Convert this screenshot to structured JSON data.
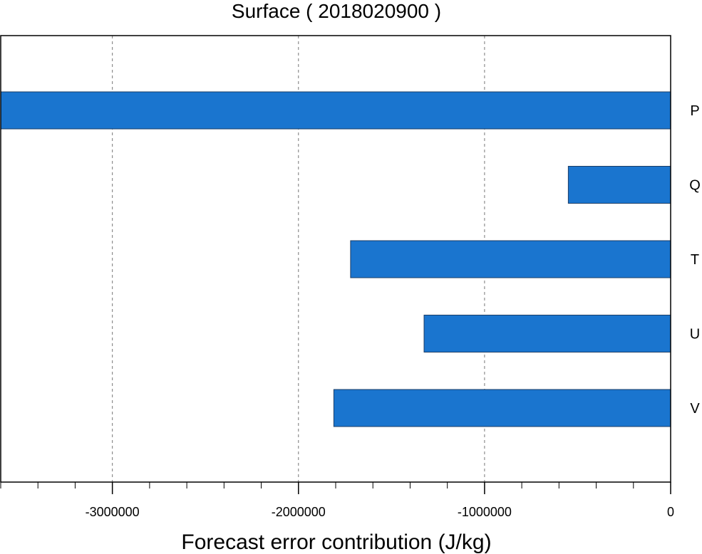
{
  "chart_data": {
    "type": "bar",
    "orientation": "horizontal",
    "title": "Surface ( 2018020900 )",
    "xlabel": "Forecast error contribution (J/kg)",
    "ylabel": "",
    "categories": [
      "P",
      "Q",
      "T",
      "U",
      "V"
    ],
    "values": [
      -3600000,
      -550000,
      -1720000,
      -1325000,
      -1810000
    ],
    "xlim": [
      -3600000,
      0
    ],
    "xticks": [
      -3000000,
      -2000000,
      -1000000,
      0
    ],
    "xtick_labels": [
      "-3000000",
      "-2000000",
      "-1000000",
      "0"
    ],
    "minor_tick_step": 200000,
    "grid": "vertical dashed at major ticks",
    "category_labels_side": "right",
    "bar_color": "#1a75cf",
    "legend": "none"
  }
}
